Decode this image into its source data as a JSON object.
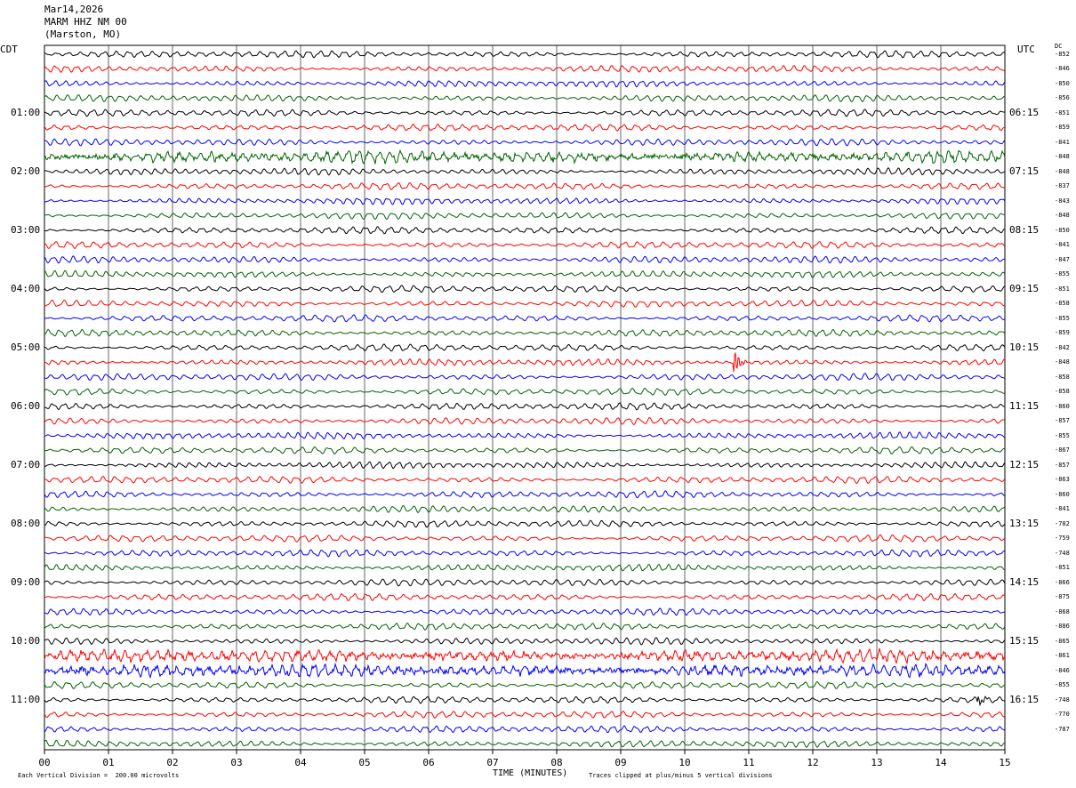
{
  "header": {
    "date": "Mar14,2026",
    "station": "MARM HHZ NM 00",
    "location": "(Marston, MO)"
  },
  "labels": {
    "left_tz": "CDT",
    "right_tz": "UTC",
    "dc": "DC"
  },
  "footer": {
    "scale_note": "Each Vertical Division =  200.00 microvolts",
    "xlabel": "TIME (MINUTES)",
    "clip_note": "Traces clipped at plus/minus 5 vertical divisions"
  },
  "chart_data": {
    "type": "line",
    "subtype": "helicorder",
    "xlabel": "TIME (MINUTES)",
    "xlim": [
      0,
      15
    ],
    "x_ticks": [
      "00",
      "01",
      "02",
      "03",
      "04",
      "05",
      "06",
      "07",
      "08",
      "09",
      "10",
      "11",
      "12",
      "13",
      "14",
      "15"
    ],
    "trace_colors": [
      "#000000",
      "#ff0000",
      "#0000ff",
      "#006400"
    ],
    "left_hour_labels": [
      "01:00",
      "02:00",
      "03:00",
      "04:00",
      "05:00",
      "06:00",
      "07:00",
      "08:00",
      "09:00",
      "10:00",
      "11:00"
    ],
    "right_hour_labels": [
      "06:15",
      "07:15",
      "08:15",
      "09:15",
      "10:15",
      "11:15",
      "12:15",
      "13:15",
      "14:15",
      "15:15",
      "16:15"
    ],
    "dc_offsets": [
      "-852",
      "-846",
      "-850",
      "-856",
      "-851",
      "-859",
      "-841",
      "-848",
      "-848",
      "-837",
      "-843",
      "-848",
      "-850",
      "-841",
      "-847",
      "-855",
      "-851",
      "-858",
      "-855",
      "-859",
      "-842",
      "-848",
      "-858",
      "-858",
      "-860",
      "-857",
      "-855",
      "-867",
      "-857",
      "-863",
      "-860",
      "-841",
      "-782",
      "-759",
      "-748",
      "-851",
      "-866",
      "-875",
      "-868",
      "-886",
      "-865",
      "-861",
      "-846",
      "-855",
      "-748",
      "-770",
      "-787"
    ],
    "trace_count": 48,
    "high_noise_traces": [
      7,
      41,
      42
    ],
    "events": [
      {
        "trace": 21,
        "minute": 10.8,
        "amplitude": "large"
      },
      {
        "trace": 44,
        "minute": 14.6,
        "amplitude": "medium"
      }
    ]
  }
}
